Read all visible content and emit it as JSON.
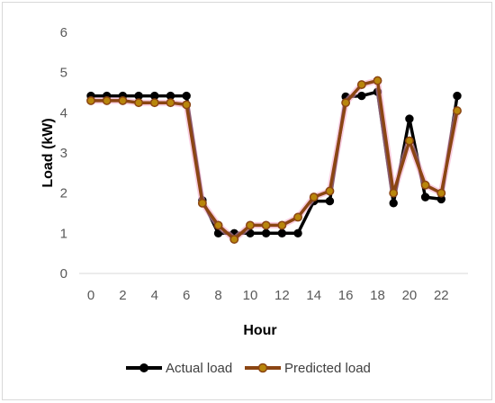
{
  "chart_data": {
    "type": "line",
    "xlabel": "Hour",
    "ylabel": "Load (kW)",
    "ylim": [
      0,
      6
    ],
    "xlim": [
      0,
      23
    ],
    "y_ticks": [
      0,
      1,
      2,
      3,
      4,
      5,
      6
    ],
    "x_ticks": [
      0,
      2,
      4,
      6,
      8,
      10,
      12,
      14,
      16,
      18,
      20,
      22
    ],
    "grid": false,
    "legend_position": "bottom",
    "x": [
      0,
      1,
      2,
      3,
      4,
      5,
      6,
      7,
      8,
      9,
      10,
      11,
      12,
      13,
      14,
      15,
      16,
      17,
      18,
      19,
      20,
      21,
      22,
      23
    ],
    "series": [
      {
        "name": "Actual load",
        "color": "#000000",
        "values": [
          4.42,
          4.42,
          4.42,
          4.42,
          4.42,
          4.42,
          4.42,
          1.82,
          1.0,
          1.0,
          1.0,
          1.0,
          1.0,
          1.0,
          1.8,
          1.8,
          4.4,
          4.42,
          4.52,
          1.75,
          3.85,
          1.9,
          1.85,
          4.42
        ]
      },
      {
        "name": "Predicted load",
        "color": "#8B4513",
        "values": [
          4.3,
          4.3,
          4.3,
          4.25,
          4.25,
          4.25,
          4.2,
          1.75,
          1.2,
          0.85,
          1.2,
          1.2,
          1.2,
          1.4,
          1.9,
          2.05,
          4.25,
          4.7,
          4.8,
          2.0,
          3.3,
          2.2,
          2.0,
          4.05
        ]
      }
    ]
  },
  "legend": {
    "items": [
      {
        "label": "Actual load"
      },
      {
        "label": "Predicted load"
      }
    ]
  }
}
